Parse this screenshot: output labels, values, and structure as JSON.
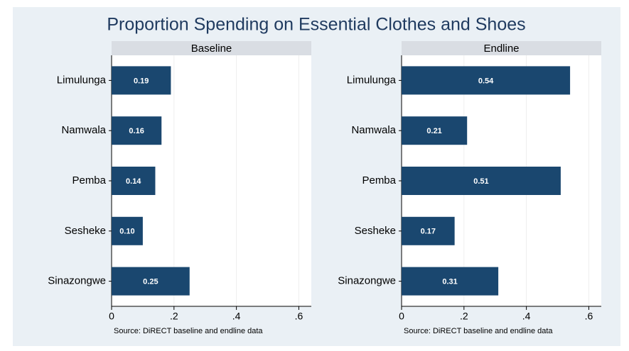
{
  "title": "Proportion Spending on Essential Clothes and Shoes",
  "chart_data": [
    {
      "type": "bar",
      "orientation": "horizontal",
      "title": "Baseline",
      "categories": [
        "Limulunga",
        "Namwala",
        "Pemba",
        "Sesheke",
        "Sinazongwe"
      ],
      "values": [
        0.19,
        0.16,
        0.14,
        0.1,
        0.25
      ],
      "value_labels": [
        "0.19",
        "0.16",
        "0.14",
        "0.10",
        "0.25"
      ],
      "color": "#1a476f",
      "xlim": [
        0,
        0.64
      ],
      "xticks": [
        0,
        {
          "value": 0.2,
          "label": ".2"
        },
        {
          "value": 0.4,
          "label": ".4"
        },
        {
          "value": 0.6,
          "label": ".6"
        }
      ],
      "grid": true,
      "note": "Source:  DiRECT baseline and endline data"
    },
    {
      "type": "bar",
      "orientation": "horizontal",
      "title": "Endline",
      "categories": [
        "Limulunga",
        "Namwala",
        "Pemba",
        "Sesheke",
        "Sinazongwe"
      ],
      "values": [
        0.54,
        0.21,
        0.51,
        0.17,
        0.31
      ],
      "value_labels": [
        "0.54",
        "0.21",
        "0.51",
        "0.17",
        "0.31"
      ],
      "color": "#1a476f",
      "xlim": [
        0,
        0.64
      ],
      "xticks": [
        0,
        {
          "value": 0.2,
          "label": ".2"
        },
        {
          "value": 0.4,
          "label": ".4"
        },
        {
          "value": 0.6,
          "label": ".6"
        }
      ],
      "grid": true,
      "note": "Source:  DiRECT baseline and endline data"
    }
  ]
}
